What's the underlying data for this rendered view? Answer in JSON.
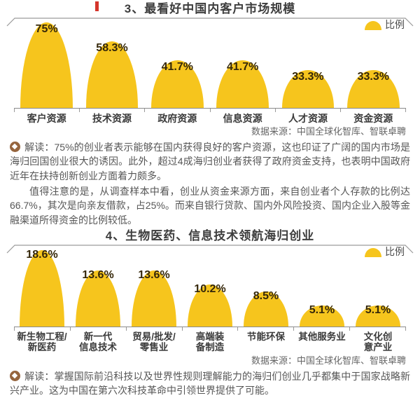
{
  "accent_color": "#f6c51d",
  "sections": [
    {
      "title": "3、最看好中国内客户市场规模",
      "legend": "比例",
      "source": "数据来源：中国全球化智库、智联卓聘",
      "paragraphs": [
        "解读：75%的创业者表示能够在国内获得良好的客户资源，这也印证了广阔的国内市场是海归回国创业很大的诱因。此外，超过4成海归创业者获得了政府资金支持，也表明中国政府近年在扶持创新创业方面着力颇多。",
        "值得注意的是，从调查样本中看，创业从资金来源方面，来自创业者个人存款的比例达66.7%，其次是向亲友借款，占25%。而来自银行贷款、国内外风险投资、国内企业入股等金融渠道所得资金的比例较低。"
      ]
    },
    {
      "title": "4、生物医药、信息技术领航海归创业",
      "legend": "比例",
      "source": "数据来源：中国全球化智库、智联卓聘",
      "paragraphs": [
        "解读：掌握国际前沿科技以及世界性规则理解能力的海归们创业几乎都集中于国家战略新兴产业。这为中国在第六次科技革命中引领世界提供了可能。"
      ]
    }
  ],
  "chart_data": [
    {
      "type": "bar",
      "title": "3、最看好中国内客户市场规模",
      "legend": "比例",
      "categories": [
        "客户资源",
        "技术资源",
        "政府资源",
        "信息资源",
        "人才资源",
        "资金资源"
      ],
      "values": [
        75,
        58.3,
        41.7,
        41.7,
        33.3,
        33.3
      ],
      "value_labels": [
        "75%",
        "58.3%",
        "41.7%",
        "41.7%",
        "33.3%",
        "33.3%"
      ],
      "unit": "%",
      "ylim": [
        0,
        80
      ],
      "bar_color": "#f6c51d",
      "grid": false,
      "legend_position": "top-right"
    },
    {
      "type": "bar",
      "title": "4、生物医药、信息技术领航海归创业",
      "legend": "比例",
      "categories": [
        "新生物工程/\n新医药",
        "新一代\n信息技术",
        "贸易/批发/\n零售业",
        "高端装\n备制造",
        "节能环保",
        "其他服务业",
        "文化创\n意产业"
      ],
      "values": [
        18.6,
        13.6,
        13.6,
        10.2,
        8.5,
        5.1,
        5.1
      ],
      "value_labels": [
        "18.6%",
        "13.6%",
        "13.6%",
        "10.2%",
        "8.5%",
        "5.1%",
        "5.1%"
      ],
      "unit": "%",
      "ylim": [
        0,
        20
      ],
      "bar_color": "#f6c51d",
      "grid": false,
      "legend_position": "top-right"
    }
  ]
}
